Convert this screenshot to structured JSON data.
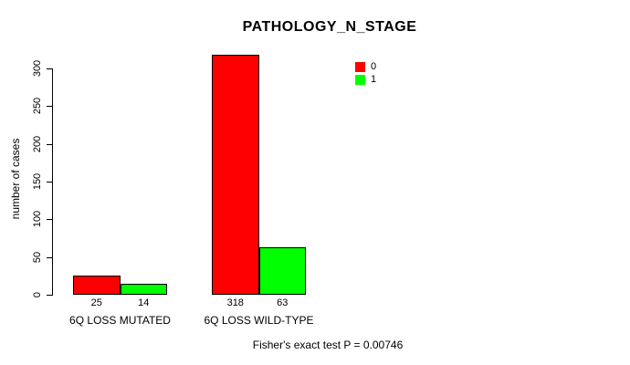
{
  "chart_data": {
    "type": "bar",
    "title": "PATHOLOGY_N_STAGE",
    "xlabel": "",
    "ylabel": "number of cases",
    "categories": [
      "6Q LOSS MUTATED",
      "6Q LOSS WILD-TYPE"
    ],
    "series": [
      {
        "name": "0",
        "color": "#ff0000",
        "values": [
          25,
          318
        ]
      },
      {
        "name": "1",
        "color": "#00ff00",
        "values": [
          14,
          63
        ]
      }
    ],
    "bar_value_labels": [
      [
        "25",
        "318"
      ],
      [
        "14",
        "63"
      ]
    ],
    "yticks": [
      0,
      50,
      100,
      150,
      200,
      250,
      300
    ],
    "ylim": [
      0,
      320
    ],
    "grid": false,
    "legend_position": "top-right",
    "annotation": "Fisher's exact test P = 0.00746"
  },
  "colors": {
    "background": "#ffffff",
    "text": "#000000",
    "axis": "#000000",
    "bar_border": "#000000",
    "series_0": "#ff0000",
    "series_1": "#00ff00"
  }
}
